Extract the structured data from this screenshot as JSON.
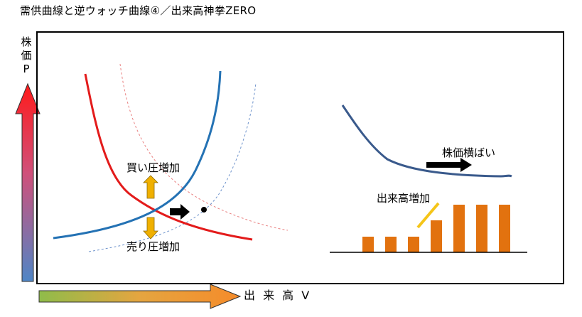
{
  "title": "需供曲線と逆ウォッチ曲線④／出来高神拳ZERO",
  "axes": {
    "y_label_lines": [
      "株",
      "価",
      "P"
    ],
    "x_label": "出 来 高 V"
  },
  "annotations": {
    "buy_pressure": "買い圧増加",
    "sell_pressure": "売り圧増加",
    "price_flat": "株価横ばい",
    "volume_up": "出来高増加"
  },
  "colors": {
    "supply_curve": "#e31b1b",
    "demand_curve": "#2472b4",
    "price_curve": "#3a5a8c",
    "volume_bar": "#e2720f",
    "volume_arrow": "#f5c518",
    "pressure_arrow": "#f0b000"
  },
  "chart_data": {
    "type": "bar",
    "title": "出来高増加",
    "values": [
      1,
      1,
      1,
      2,
      3,
      3,
      3
    ]
  }
}
